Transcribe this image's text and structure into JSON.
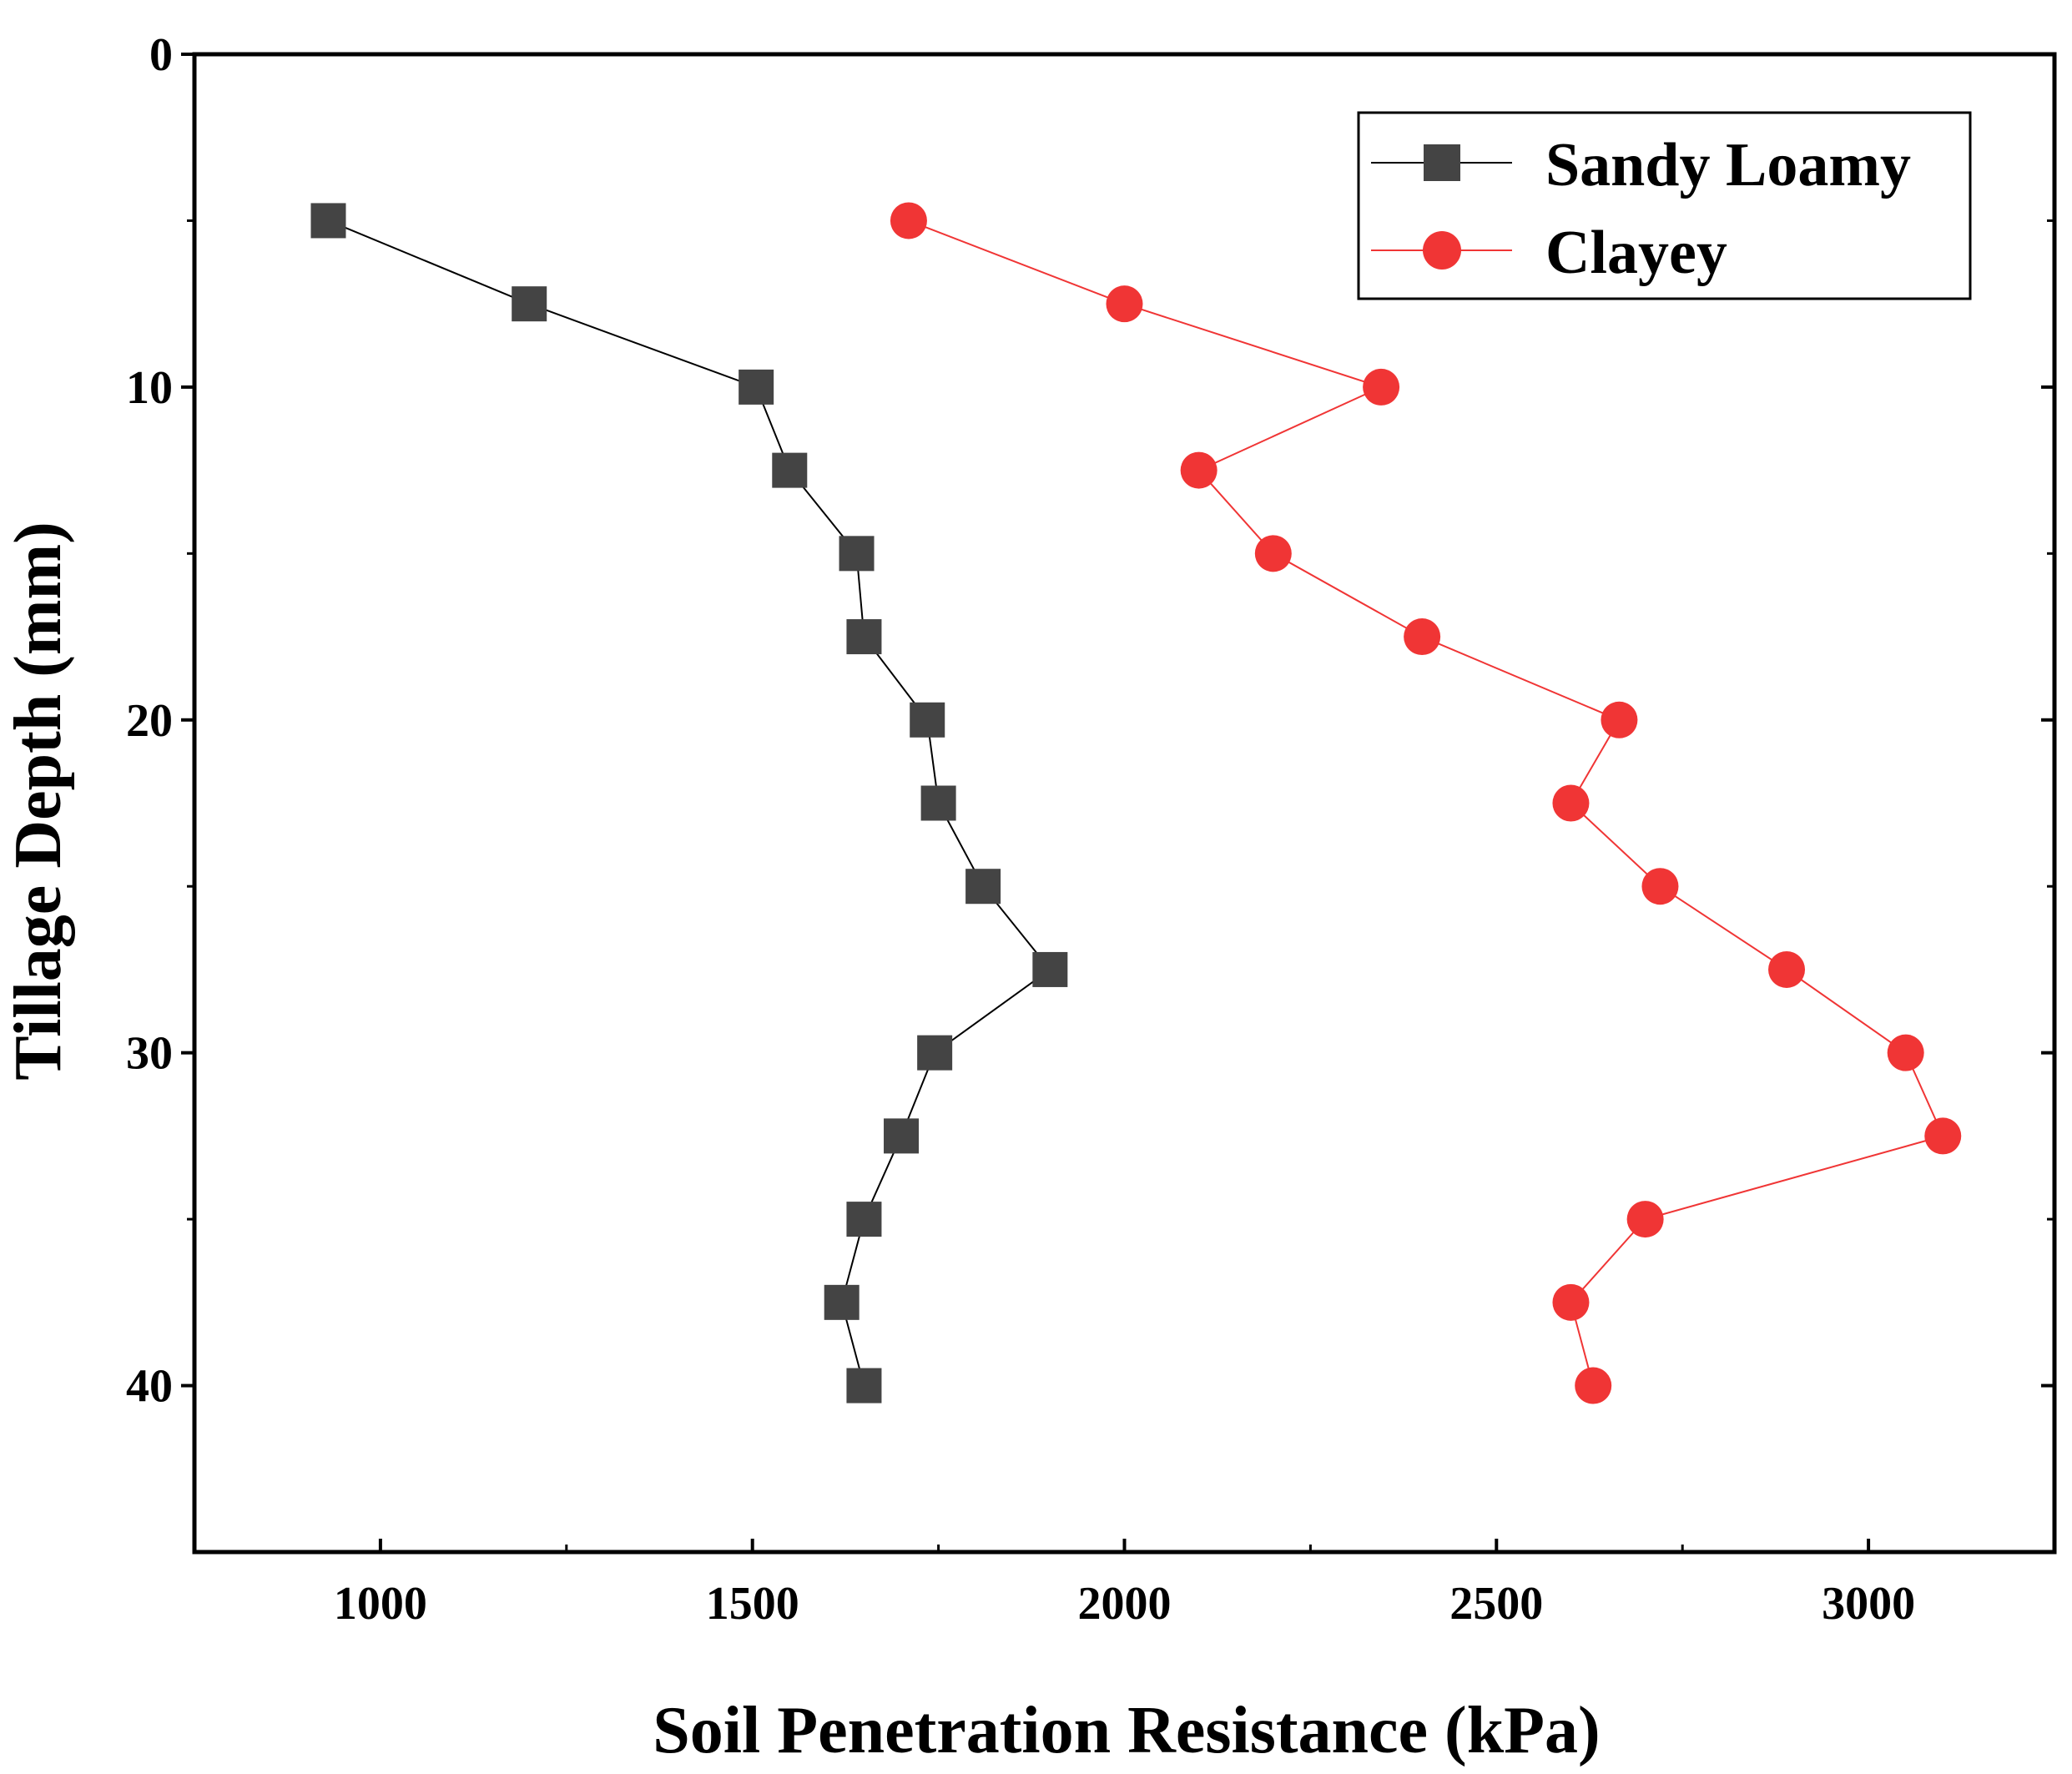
{
  "chart_data": {
    "type": "scatter",
    "title": "",
    "xlabel": "Soil Penetration Resistance (kPa)",
    "ylabel": "Tillage Depth (mm)",
    "xlim": [
      750,
      3250
    ],
    "ylim": [
      0,
      45
    ],
    "y_inverted": true,
    "xticks": [
      1000,
      1500,
      2000,
      2500,
      3000
    ],
    "yticks": [
      0,
      10,
      20,
      30,
      40
    ],
    "grid": false,
    "legend_position": "top-right",
    "series": [
      {
        "name": "Sandy Loamy",
        "color": "#444444",
        "marker": "square",
        "line_color": "#000000",
        "depth": [
          5,
          7.5,
          10,
          12.5,
          15,
          17.5,
          20,
          22.5,
          25,
          27.5,
          30,
          32.5,
          35,
          37.5,
          40
        ],
        "resistance": [
          930,
          1200,
          1505,
          1550,
          1640,
          1650,
          1735,
          1750,
          1810,
          1900,
          1745,
          1700,
          1650,
          1620,
          1650
        ]
      },
      {
        "name": "Clayey",
        "color": "#f03535",
        "marker": "circle",
        "line_color": "#f03535",
        "depth": [
          5,
          7.5,
          10,
          12.5,
          15,
          17.5,
          20,
          22.5,
          25,
          27.5,
          30,
          32.5,
          35,
          37.5,
          40
        ],
        "resistance": [
          1710,
          2000,
          2345,
          2100,
          2200,
          2400,
          2665,
          2600,
          2720,
          2890,
          3050,
          3100,
          2700,
          2600,
          2630
        ]
      }
    ]
  }
}
